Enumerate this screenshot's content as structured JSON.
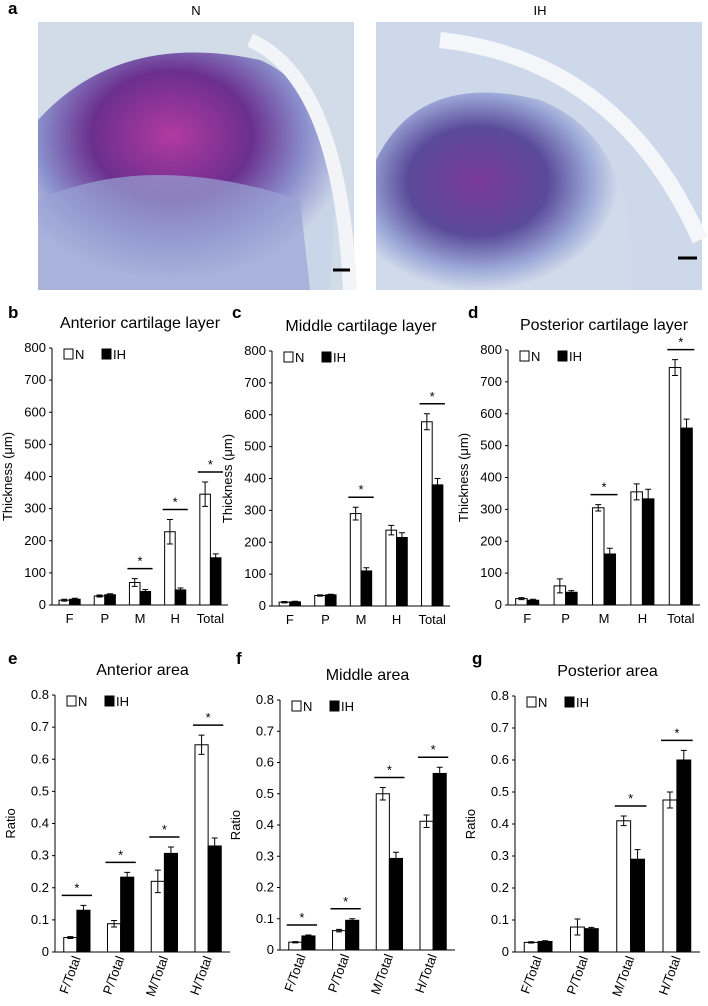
{
  "panel_a": {
    "letter": "a",
    "left_label": "N",
    "right_label": "IH"
  },
  "chart_data": [
    {
      "type": "bar",
      "panel": "b",
      "title": "Anterior cartilage layer",
      "ylabel": "Thickness (μm)",
      "categories": [
        "F",
        "P",
        "M",
        "H",
        "Total"
      ],
      "series": [
        {
          "name": "N",
          "color": "#ffffff",
          "values": [
            15,
            28,
            70,
            228,
            345
          ],
          "errors": [
            3,
            3,
            12,
            38,
            38
          ]
        },
        {
          "name": "IH",
          "color": "#000000",
          "values": [
            18,
            32,
            42,
            47,
            147
          ],
          "errors": [
            3,
            3,
            6,
            6,
            12
          ]
        }
      ],
      "significance": [
        null,
        null,
        "*",
        "*",
        "*"
      ],
      "ylim": [
        0,
        800
      ],
      "yticks": [
        0,
        100,
        200,
        300,
        400,
        500,
        600,
        700,
        800
      ],
      "grid": false,
      "xtick_rotation": 0
    },
    {
      "type": "bar",
      "panel": "c",
      "title": "Middle cartilage layer",
      "ylabel": "Thickness (μm)",
      "categories": [
        "F",
        "P",
        "M",
        "H",
        "Total"
      ],
      "series": [
        {
          "name": "N",
          "color": "#ffffff",
          "values": [
            12,
            33,
            290,
            238,
            578
          ],
          "errors": [
            2,
            2,
            20,
            15,
            25
          ]
        },
        {
          "name": "IH",
          "color": "#000000",
          "values": [
            13,
            35,
            110,
            215,
            380
          ],
          "errors": [
            2,
            2,
            10,
            15,
            20
          ]
        }
      ],
      "significance": [
        null,
        null,
        "*",
        null,
        "*"
      ],
      "ylim": [
        0,
        800
      ],
      "yticks": [
        0,
        100,
        200,
        300,
        400,
        500,
        600,
        700,
        800
      ],
      "grid": false,
      "xtick_rotation": 0
    },
    {
      "type": "bar",
      "panel": "d",
      "title": "Posterior cartilage layer",
      "ylabel": "Thickness (μm)",
      "categories": [
        "F",
        "P",
        "M",
        "H",
        "Total"
      ],
      "series": [
        {
          "name": "N",
          "color": "#ffffff",
          "values": [
            20,
            60,
            305,
            355,
            745
          ],
          "errors": [
            3,
            22,
            10,
            25,
            25
          ]
        },
        {
          "name": "IH",
          "color": "#000000",
          "values": [
            15,
            40,
            160,
            333,
            555
          ],
          "errors": [
            3,
            5,
            18,
            30,
            28
          ]
        }
      ],
      "significance": [
        null,
        null,
        "*",
        null,
        "*"
      ],
      "ylim": [
        0,
        800
      ],
      "yticks": [
        0,
        100,
        200,
        300,
        400,
        500,
        600,
        700,
        800
      ],
      "grid": false,
      "xtick_rotation": 0
    },
    {
      "type": "bar",
      "panel": "e",
      "title": "Anterior area",
      "ylabel": "Ratio",
      "categories": [
        "F/Total",
        "P/Total",
        "M/Total",
        "H/Total"
      ],
      "series": [
        {
          "name": "N",
          "color": "#ffffff",
          "values": [
            0.045,
            0.088,
            0.22,
            0.645
          ],
          "errors": [
            0.003,
            0.01,
            0.035,
            0.03
          ]
        },
        {
          "name": "IH",
          "color": "#000000",
          "values": [
            0.13,
            0.233,
            0.307,
            0.33
          ],
          "errors": [
            0.015,
            0.015,
            0.02,
            0.025
          ]
        }
      ],
      "significance": [
        "*",
        "*",
        "*",
        "*"
      ],
      "ylim": [
        0,
        0.8
      ],
      "yticks": [
        0,
        0.1,
        0.2,
        0.3,
        0.4,
        0.5,
        0.6,
        0.7,
        0.8
      ],
      "grid": false,
      "xtick_rotation": -70
    },
    {
      "type": "bar",
      "panel": "f",
      "title": "Middle area",
      "ylabel": "Ratio",
      "categories": [
        "F/Total",
        "P/Total",
        "M/Total",
        "H/Total"
      ],
      "series": [
        {
          "name": "N",
          "color": "#ffffff",
          "values": [
            0.025,
            0.062,
            0.5,
            0.412
          ],
          "errors": [
            0.002,
            0.004,
            0.02,
            0.02
          ]
        },
        {
          "name": "IH",
          "color": "#000000",
          "values": [
            0.045,
            0.095,
            0.293,
            0.565
          ],
          "errors": [
            0.003,
            0.005,
            0.02,
            0.02
          ]
        }
      ],
      "significance": [
        "*",
        "*",
        "*",
        "*"
      ],
      "ylim": [
        0,
        0.8
      ],
      "yticks": [
        0,
        0.1,
        0.2,
        0.3,
        0.4,
        0.5,
        0.6,
        0.7,
        0.8
      ],
      "grid": false,
      "xtick_rotation": -70
    },
    {
      "type": "bar",
      "panel": "g",
      "title": "Posterior area",
      "ylabel": "Ratio",
      "categories": [
        "F/Total",
        "P/Total",
        "M/Total",
        "H/Total"
      ],
      "series": [
        {
          "name": "N",
          "color": "#ffffff",
          "values": [
            0.03,
            0.078,
            0.41,
            0.475
          ],
          "errors": [
            0.002,
            0.025,
            0.015,
            0.025
          ]
        },
        {
          "name": "IH",
          "color": "#000000",
          "values": [
            0.033,
            0.073,
            0.29,
            0.6
          ],
          "errors": [
            0.002,
            0.004,
            0.03,
            0.03
          ]
        }
      ],
      "significance": [
        null,
        null,
        "*",
        "*"
      ],
      "ylim": [
        0,
        0.8
      ],
      "yticks": [
        0,
        0.1,
        0.2,
        0.3,
        0.4,
        0.5,
        0.6,
        0.7,
        0.8
      ],
      "grid": false,
      "xtick_rotation": -70
    }
  ]
}
